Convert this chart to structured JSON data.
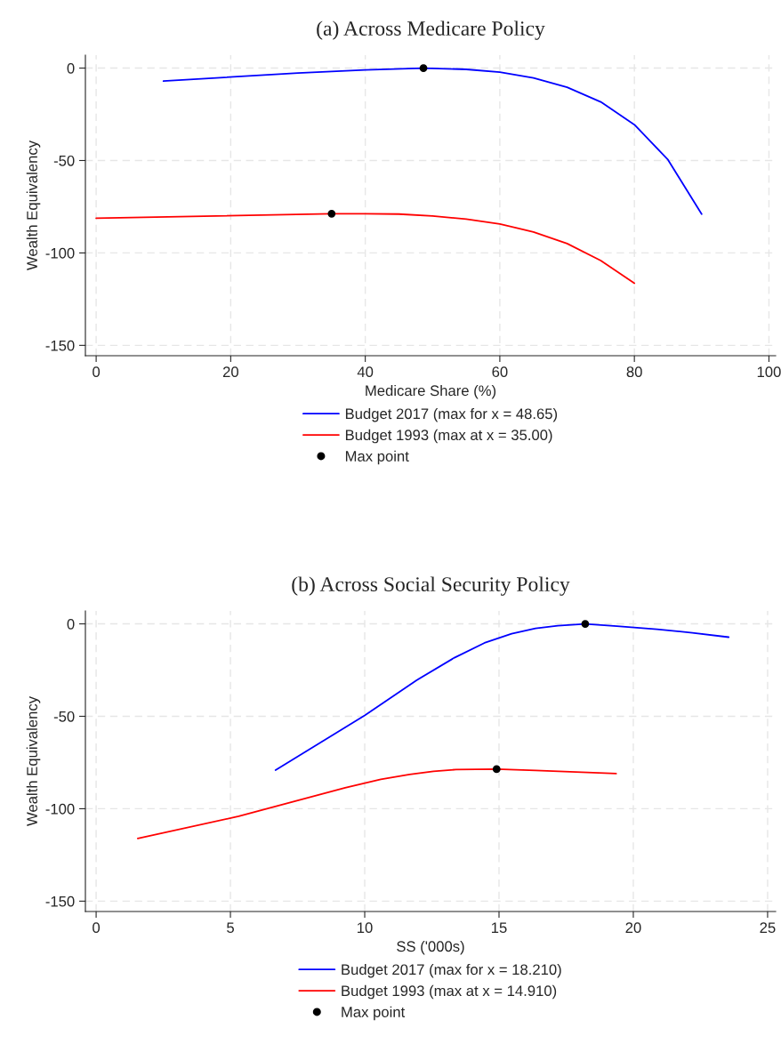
{
  "chart_data": [
    {
      "type": "line",
      "title": "(a) Across Medicare Policy",
      "xlabel": "Medicare Share (%)",
      "ylabel": "Wealth Equivalency",
      "xlim": [
        -1.6,
        101
      ],
      "ylim": [
        -155.6,
        7
      ],
      "xticks": [
        0,
        20,
        40,
        60,
        80,
        100
      ],
      "yticks": [
        {
          "value": 0,
          "label": "0"
        },
        {
          "value": -50,
          "label": "-50"
        },
        {
          "value": -100,
          "label": "-100"
        },
        {
          "value": -150,
          "label": "-150"
        }
      ],
      "grid": true,
      "legend": "bottom",
      "line_style": "solid",
      "series": [
        {
          "name": "Budget 2017 (max for x = 48.65)",
          "color": "#0000ff",
          "x": [
            10,
            30,
            40,
            48.65,
            55,
            60,
            65,
            70,
            75,
            80,
            85,
            90
          ],
          "values": [
            -7.0,
            -2.7,
            -1.0,
            0,
            -0.7,
            -2.2,
            -5.3,
            -10.4,
            -18.3,
            -30.6,
            -49.6,
            -79.0
          ]
        },
        {
          "name": "Budget 1993 (max at x = 35.00)",
          "color": "#ff0000",
          "x": [
            0,
            35,
            40,
            45,
            50,
            55,
            60,
            65,
            70,
            75,
            80
          ],
          "values": [
            -81.2,
            -78.8,
            -78.8,
            -79.0,
            -80.0,
            -81.7,
            -84.3,
            -88.7,
            -94.9,
            -104.1,
            -116.4
          ]
        },
        {
          "name": "Max point",
          "type": "scatter",
          "marker": "circle",
          "color": "#000000",
          "x": [
            48.65,
            35
          ],
          "values": [
            0,
            -78.8
          ]
        }
      ]
    },
    {
      "type": "line",
      "title": "(b) Across Social Security Policy",
      "xlabel": "SS ('000s)",
      "ylabel": "Wealth Equivalency",
      "xlim": [
        -0.4,
        25.3
      ],
      "ylim": [
        -155.6,
        7
      ],
      "xticks": [
        0,
        5,
        10,
        15,
        20,
        25
      ],
      "yticks": [
        {
          "value": 0,
          "label": "0"
        },
        {
          "value": -50,
          "label": "-50"
        },
        {
          "value": -100,
          "label": "-100"
        },
        {
          "value": -150,
          "label": "-150"
        }
      ],
      "grid": true,
      "legend": "bottom",
      "line_style": "solid",
      "series": [
        {
          "name": "Budget 2017 (max for x = 18.210)",
          "color": "#0000ff",
          "x": [
            6.68,
            10.0,
            11.93,
            13.34,
            14.46,
            15.47,
            16.36,
            17.19,
            18.21,
            19.39,
            20.88,
            22.2,
            23.55
          ],
          "values": [
            -79.1,
            -49.5,
            -30.5,
            -18.3,
            -10.3,
            -5.3,
            -2.4,
            -1.0,
            0,
            -1.2,
            -2.9,
            -4.8,
            -7.2
          ]
        },
        {
          "name": "Budget 1993 (max at x = 14.910)",
          "color": "#ff0000",
          "x": [
            1.55,
            5.31,
            9.27,
            10.6,
            11.67,
            12.56,
            13.4,
            14.91,
            16.36,
            19.36
          ],
          "values": [
            -116.1,
            -104.1,
            -88.7,
            -84.1,
            -81.5,
            -79.8,
            -78.8,
            -78.6,
            -79.3,
            -81.0
          ]
        },
        {
          "name": "Max point",
          "type": "scatter",
          "marker": "circle",
          "color": "#000000",
          "x": [
            18.21,
            14.91
          ],
          "values": [
            0,
            -78.6
          ]
        }
      ]
    }
  ]
}
